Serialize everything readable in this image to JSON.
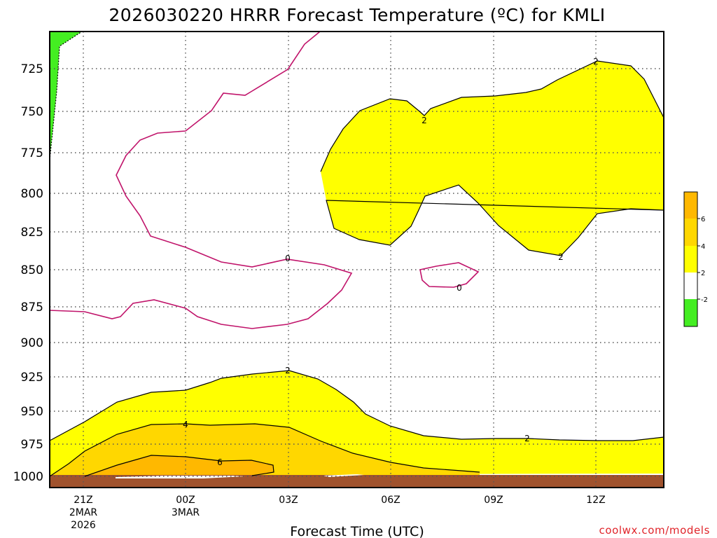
{
  "title": "2026030220 HRRR Forecast Temperature (ºC) for KMLI",
  "credit": "coolwx.com/models",
  "colors": {
    "green": "#44ee22",
    "yellow": "#ffff00",
    "gold": "#ffd700",
    "orange": "#ffb800",
    "ground": "#a0522d",
    "zero_line": "#c0136a"
  },
  "chart_data": {
    "type": "contour",
    "title": "2026030220 HRRR Forecast Temperature (ºC) for KMLI",
    "xlabel": "Forecast Time (UTC)",
    "ylabel": "",
    "x_ticks": [
      {
        "hour": 1,
        "lines": [
          "21Z",
          "2MAR",
          "2026"
        ]
      },
      {
        "hour": 4,
        "lines": [
          "00Z",
          "3MAR"
        ]
      },
      {
        "hour": 7,
        "lines": [
          "03Z"
        ]
      },
      {
        "hour": 10,
        "lines": [
          "06Z"
        ]
      },
      {
        "hour": 13,
        "lines": [
          "09Z"
        ]
      },
      {
        "hour": 16,
        "lines": [
          "12Z"
        ]
      }
    ],
    "y_axis": {
      "label": "",
      "scale": "log",
      "inverted": true,
      "ticks": [
        725,
        750,
        775,
        800,
        825,
        850,
        875,
        900,
        925,
        950,
        975,
        1000
      ]
    },
    "colorbar": {
      "levels": [
        6,
        4,
        2,
        -2
      ],
      "bands": [
        "orange",
        "gold",
        "yellow",
        "white",
        "green"
      ]
    },
    "contour_labels": [
      {
        "text": "2",
        "hour": 16.0,
        "p": 721
      },
      {
        "text": "2",
        "hour": 11.0,
        "p": 758
      },
      {
        "text": "2",
        "hour": 15.0,
        "p": 840
      },
      {
        "text": "0",
        "hour": 7.0,
        "p": 844
      },
      {
        "text": "0",
        "hour": 12.0,
        "p": 861
      },
      {
        "text": "2",
        "hour": 7.0,
        "p": 922
      },
      {
        "text": "4",
        "hour": 4.0,
        "p": 968
      },
      {
        "text": "6",
        "hour": 5.0,
        "p": 990
      },
      {
        "text": "2",
        "hour": 14.0,
        "p": 972
      }
    ]
  }
}
